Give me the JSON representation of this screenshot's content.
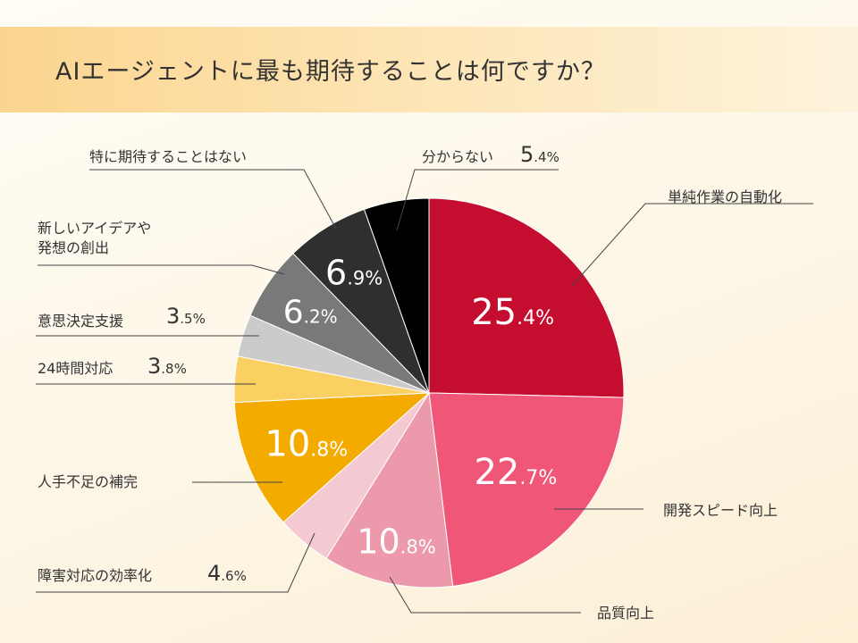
{
  "chart_data": {
    "type": "pie",
    "title": "AIエージェントに最も期待することは何ですか？",
    "slices": [
      {
        "label": "単純作業の自動化",
        "value": 25.4,
        "color": "#c40d2f"
      },
      {
        "label": "開発スピード向上",
        "value": 22.7,
        "color": "#ef5678"
      },
      {
        "label": "品質向上",
        "value": 10.8,
        "color": "#ec99ab"
      },
      {
        "label": "障害対応の効率化",
        "value": 4.6,
        "color": "#f5c9d1"
      },
      {
        "label": "人手不足の補完",
        "value": 10.8,
        "color": "#f4ab00"
      },
      {
        "label": "24時間対応",
        "value": 3.8,
        "color": "#fad062"
      },
      {
        "label": "意思決定支援",
        "value": 3.5,
        "color": "#cbcbcb"
      },
      {
        "label": "新しいアイデアや\n発想の創出",
        "value": 6.2,
        "color": "#797979"
      },
      {
        "label": "特に期待することはない",
        "value": 6.9,
        "color": "#2f2f2f"
      },
      {
        "label": "分からない",
        "value": 5.4,
        "color": "#000000"
      }
    ]
  }
}
